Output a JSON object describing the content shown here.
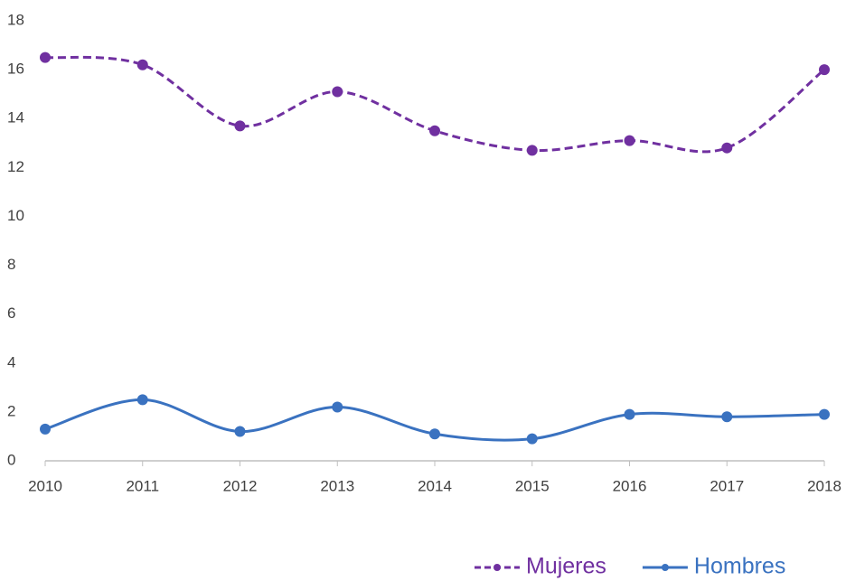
{
  "chart_data": {
    "type": "line",
    "x": [
      2010,
      2011,
      2012,
      2013,
      2014,
      2015,
      2016,
      2017,
      2018
    ],
    "xlim": [
      2010,
      2018
    ],
    "xticks": [
      2010,
      2011,
      2012,
      2013,
      2014,
      2015,
      2016,
      2017,
      2018
    ],
    "ylim": [
      0,
      18
    ],
    "yticks": [
      0,
      2,
      4,
      6,
      8,
      10,
      12,
      14,
      16,
      18
    ],
    "grid": false,
    "legend": "bottom-right",
    "series": [
      {
        "name": "Mujeres",
        "color": "#7030a0",
        "dash": true,
        "values": [
          16.5,
          16.2,
          13.7,
          15.1,
          13.5,
          12.7,
          13.1,
          12.8,
          16.0
        ]
      },
      {
        "name": "Hombres",
        "color": "#3a72c0",
        "dash": false,
        "values": [
          1.3,
          2.5,
          1.2,
          2.2,
          1.1,
          0.9,
          1.9,
          1.8,
          1.9
        ]
      }
    ]
  }
}
